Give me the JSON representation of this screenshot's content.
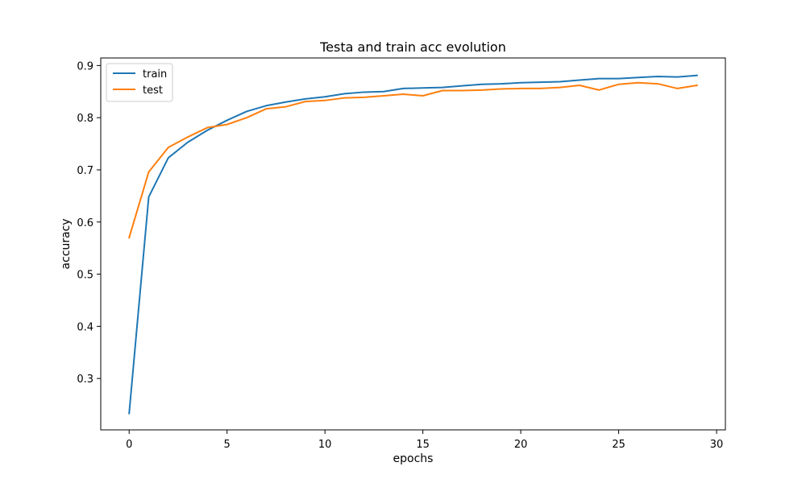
{
  "chart_data": {
    "type": "line",
    "title": "Testa and train acc evolution",
    "xlabel": "epochs",
    "ylabel": "accuracy",
    "xlim": [
      -1.45,
      30.45
    ],
    "ylim": [
      0.2015,
      0.9145
    ],
    "xticks": [
      0,
      5,
      10,
      15,
      20,
      25,
      30
    ],
    "yticks": [
      0.3,
      0.4,
      0.5,
      0.6,
      0.7,
      0.8,
      0.9
    ],
    "grid": false,
    "legend": "upper left",
    "x": [
      0,
      1,
      2,
      3,
      4,
      5,
      6,
      7,
      8,
      9,
      10,
      11,
      12,
      13,
      14,
      15,
      16,
      17,
      18,
      19,
      20,
      21,
      22,
      23,
      24,
      25,
      26,
      27,
      28,
      29
    ],
    "series": [
      {
        "name": "train",
        "color": "#1f77b4",
        "values": [
          0.233,
          0.648,
          0.723,
          0.753,
          0.776,
          0.795,
          0.812,
          0.823,
          0.83,
          0.836,
          0.84,
          0.846,
          0.849,
          0.85,
          0.856,
          0.857,
          0.858,
          0.861,
          0.864,
          0.865,
          0.867,
          0.868,
          0.869,
          0.872,
          0.875,
          0.875,
          0.877,
          0.879,
          0.878,
          0.881
        ]
      },
      {
        "name": "test",
        "color": "#ff7f0e",
        "values": [
          0.57,
          0.696,
          0.743,
          0.763,
          0.781,
          0.787,
          0.8,
          0.817,
          0.821,
          0.831,
          0.833,
          0.838,
          0.839,
          0.842,
          0.845,
          0.842,
          0.852,
          0.852,
          0.853,
          0.855,
          0.856,
          0.856,
          0.858,
          0.862,
          0.853,
          0.864,
          0.867,
          0.865,
          0.856,
          0.862
        ]
      }
    ]
  }
}
